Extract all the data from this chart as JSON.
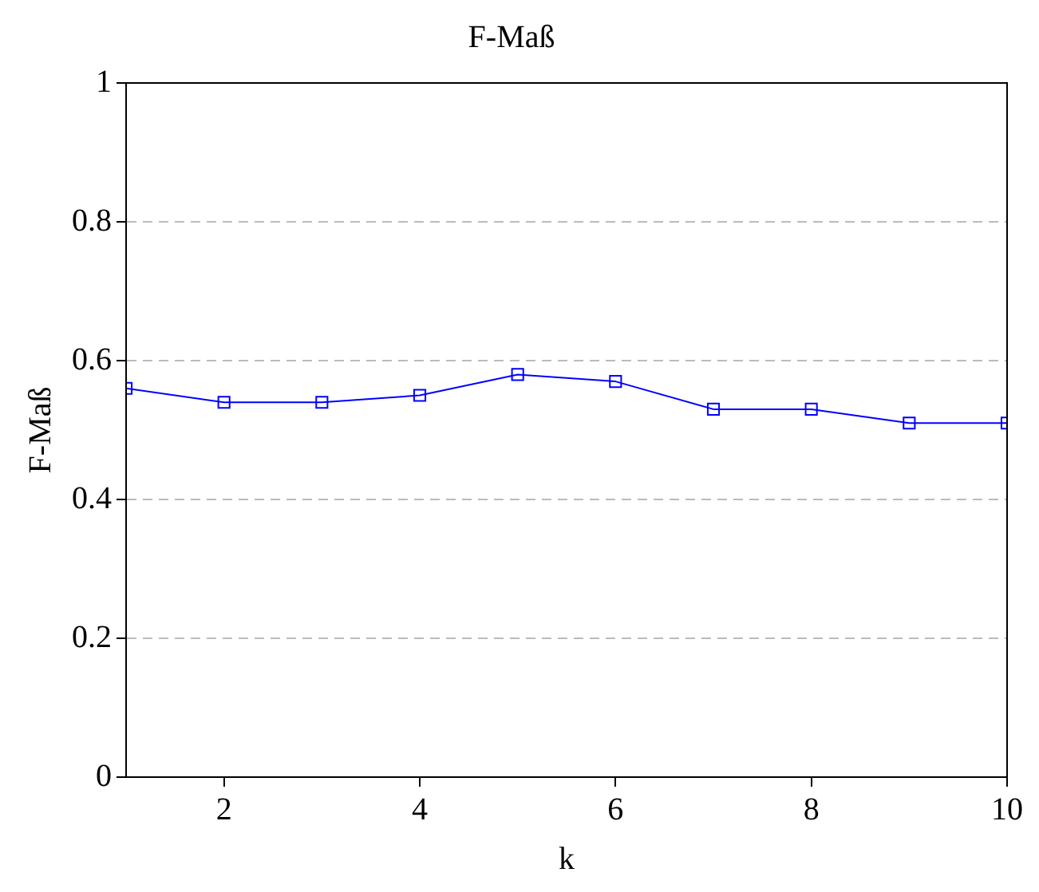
{
  "chart_data": {
    "type": "line",
    "title": "F-Maß",
    "xlabel": "k",
    "ylabel": "F-Maß",
    "x": [
      1,
      2,
      3,
      4,
      5,
      6,
      7,
      8,
      9,
      10
    ],
    "series": [
      {
        "color": "#0000ff",
        "values": [
          0.56,
          0.54,
          0.54,
          0.55,
          0.58,
          0.57,
          0.53,
          0.53,
          0.51,
          0.51
        ]
      }
    ],
    "xlim": [
      1,
      10
    ],
    "xticks": [
      2,
      4,
      6,
      8,
      10
    ],
    "ylim": [
      0,
      1
    ],
    "yticks": [
      0,
      0.2,
      0.4,
      0.6,
      0.8,
      1
    ],
    "grid": "y",
    "marker": "square",
    "line_style": "solid",
    "legend": false
  }
}
